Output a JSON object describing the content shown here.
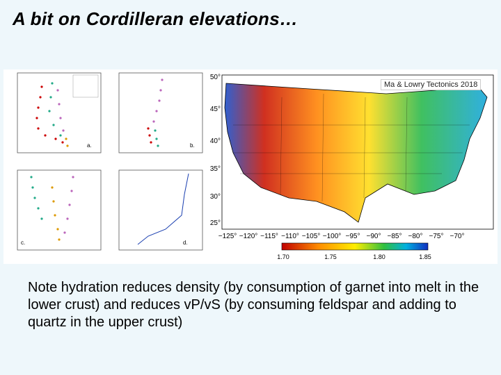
{
  "title": "A bit on Cordilleran elevations…",
  "panels": {
    "a": "a.",
    "b": "b.",
    "c": "c.",
    "d": "d."
  },
  "map": {
    "credit": "Ma & Lowry Tectonics 2018",
    "lat": [
      "50°",
      "45°",
      "40°",
      "35°",
      "30°",
      "25°"
    ],
    "lon": [
      "−125°",
      "−120°",
      "−115°",
      "−110°",
      "−105°",
      "−100°",
      "−95°",
      "−90°",
      "−85°",
      "−80°",
      "−75°",
      "−70°",
      ""
    ],
    "colorbar": [
      "1.70",
      "1.75",
      "1.80",
      "1.85"
    ]
  },
  "caption": "Note hydration reduces density (by consumption of garnet into melt in the lower crust) and reduces vP/vS (by consuming feldspar and adding to quartz in the upper crust)"
}
